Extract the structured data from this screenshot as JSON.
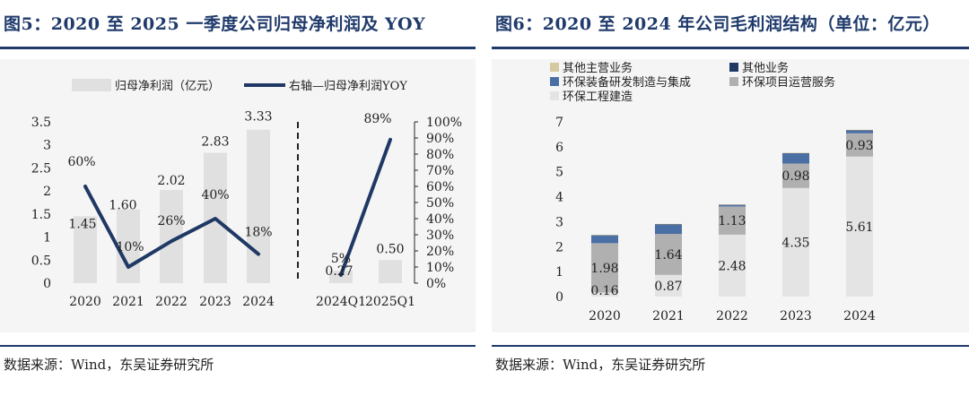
{
  "left": {
    "title": "图5：2020 至 2025 一季度公司归母净利润及 YOY",
    "source": "数据来源：Wind，东吴证券研究所",
    "legend": {
      "bar": "归母净利润（亿元）",
      "line": "右轴—归母净利润YOY"
    },
    "colors": {
      "bar": "#e0e0e0",
      "line": "#1f3864",
      "title": "#1f3a6b"
    }
  },
  "right": {
    "title": "图6：2020 至 2024 年公司毛利润结构（单位：亿元）",
    "source": "数据来源：Wind，东吴证券研究所",
    "colors": {
      "其他主营业务": "#d6c9a1",
      "其他业务": "#1f3864",
      "环保装备研发制造与集成": "#4a6fa5",
      "环保项目运营服务": "#b0b0b0",
      "环保工程建造": "#e4e4e4"
    }
  },
  "chart_data": [
    {
      "type": "bar",
      "categories": [
        "2020",
        "2021",
        "2022",
        "2023",
        "2024",
        "2024Q1",
        "2025Q1"
      ],
      "series": [
        {
          "name": "归母净利润（亿元）",
          "axis": "left",
          "values": [
            1.45,
            1.6,
            2.02,
            2.83,
            3.33,
            0.27,
            0.5
          ],
          "labels": [
            "1.45",
            "1.60",
            "2.02",
            "2.83",
            "3.33",
            "0.27",
            "0.50"
          ]
        },
        {
          "name": "右轴—归母净利润YOY",
          "axis": "right",
          "kind": "line",
          "segments": [
            [
              0,
              4
            ],
            [
              5,
              6
            ]
          ],
          "values": [
            60,
            10,
            26,
            40,
            18,
            5,
            89
          ],
          "labels": [
            "60%",
            "10%",
            "26%",
            "40%",
            "18%",
            "5%",
            "89%"
          ]
        }
      ],
      "ylim": [
        0,
        3.5
      ],
      "yticks": [
        "0",
        "0.5",
        "1",
        "1.5",
        "2",
        "2.5",
        "3",
        "3.5"
      ],
      "y2lim": [
        0,
        100
      ],
      "y2ticks": [
        "0%",
        "10%",
        "20%",
        "30%",
        "40%",
        "50%",
        "60%",
        "70%",
        "80%",
        "90%",
        "100%"
      ],
      "legend_position": "top",
      "separator_between": [
        "2024",
        "2024Q1"
      ]
    },
    {
      "type": "bar",
      "stacked": true,
      "categories": [
        "2020",
        "2021",
        "2022",
        "2023",
        "2024"
      ],
      "series": [
        {
          "name": "环保工程建造",
          "values": [
            0.16,
            0.87,
            2.48,
            4.35,
            5.61
          ],
          "labels": [
            "0.16",
            "0.87",
            "2.48",
            "4.35",
            "5.61"
          ]
        },
        {
          "name": "环保项目运营服务",
          "values": [
            1.98,
            1.64,
            1.13,
            0.98,
            0.93
          ],
          "labels": [
            "1.98",
            "1.64",
            "1.13",
            "0.98",
            "0.93"
          ]
        },
        {
          "name": "环保装备研发制造与集成",
          "values": [
            0.3,
            0.36,
            0.05,
            0.4,
            0.1
          ]
        },
        {
          "name": "其他业务",
          "values": [
            0.02,
            0.03,
            0.02,
            0.02,
            0.02
          ]
        },
        {
          "name": "其他主营业务",
          "values": [
            0.01,
            0.01,
            0.01,
            0.01,
            0.02
          ]
        }
      ],
      "ylim": [
        0,
        7
      ],
      "yticks": [
        "0",
        "1",
        "2",
        "3",
        "4",
        "5",
        "6",
        "7"
      ],
      "legend": [
        [
          "其他主营业务",
          "其他业务"
        ],
        [
          "环保装备研发制造与集成",
          "环保项目运营服务"
        ],
        [
          "环保工程建造"
        ]
      ],
      "legend_position": "top-left"
    }
  ]
}
